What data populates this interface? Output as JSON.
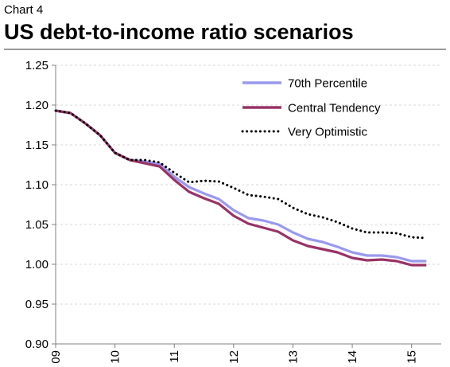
{
  "header": {
    "label": "Chart 4",
    "title": "US debt-to-income ratio scenarios"
  },
  "colors": {
    "series_70th": "#9999ee",
    "series_central": "#993366",
    "series_optimistic": "#000000",
    "gridline": "#d9d9d9",
    "axis": "#808080"
  },
  "chart_data": {
    "type": "line",
    "title": "US debt-to-income ratio scenarios",
    "xlabel": "",
    "ylabel": "",
    "ylim": [
      0.9,
      1.25
    ],
    "xlim": [
      2009,
      2015.5
    ],
    "yticks": [
      0.9,
      0.95,
      1.0,
      1.05,
      1.1,
      1.15,
      1.2,
      1.25
    ],
    "ytick_labels": [
      "0.90",
      "0.95",
      "1.00",
      "1.05",
      "1.10",
      "1.15",
      "1.20",
      "1.25"
    ],
    "xticks": [
      2009,
      2010,
      2011,
      2012,
      2013,
      2014,
      2015
    ],
    "xtick_labels": [
      "09",
      "10",
      "11",
      "12",
      "13",
      "14",
      "15"
    ],
    "grid": true,
    "legend_position": "top-right",
    "series": [
      {
        "name": "70th Percentile",
        "style": "solid",
        "color": "#9999ee",
        "x": [
          2009.0,
          2009.25,
          2009.5,
          2009.75,
          2010.0,
          2010.25,
          2010.5,
          2010.75,
          2011.0,
          2011.25,
          2011.5,
          2011.75,
          2012.0,
          2012.25,
          2012.5,
          2012.75,
          2013.0,
          2013.25,
          2013.5,
          2013.75,
          2014.0,
          2014.25,
          2014.5,
          2014.75,
          2015.0,
          2015.25
        ],
        "values": [
          1.193,
          1.19,
          1.177,
          1.162,
          1.14,
          1.131,
          1.129,
          1.126,
          1.11,
          1.097,
          1.089,
          1.082,
          1.068,
          1.058,
          1.055,
          1.05,
          1.04,
          1.032,
          1.028,
          1.022,
          1.015,
          1.011,
          1.011,
          1.009,
          1.004,
          1.004
        ]
      },
      {
        "name": "Central Tendency",
        "style": "solid",
        "color": "#993366",
        "x": [
          2009.0,
          2009.25,
          2009.5,
          2009.75,
          2010.0,
          2010.25,
          2010.5,
          2010.75,
          2011.0,
          2011.25,
          2011.5,
          2011.75,
          2012.0,
          2012.25,
          2012.5,
          2012.75,
          2013.0,
          2013.25,
          2013.5,
          2013.75,
          2014.0,
          2014.25,
          2014.5,
          2014.75,
          2015.0,
          2015.25
        ],
        "values": [
          1.193,
          1.19,
          1.177,
          1.162,
          1.14,
          1.131,
          1.127,
          1.123,
          1.106,
          1.091,
          1.083,
          1.076,
          1.061,
          1.051,
          1.046,
          1.041,
          1.03,
          1.023,
          1.019,
          1.015,
          1.008,
          1.005,
          1.006,
          1.004,
          0.999,
          0.999
        ]
      },
      {
        "name": "Very Optimistic",
        "style": "dotted",
        "color": "#000000",
        "x": [
          2009.0,
          2009.25,
          2009.5,
          2009.75,
          2010.0,
          2010.25,
          2010.5,
          2010.75,
          2011.0,
          2011.25,
          2011.5,
          2011.75,
          2012.0,
          2012.25,
          2012.5,
          2012.75,
          2013.0,
          2013.25,
          2013.5,
          2013.75,
          2014.0,
          2014.25,
          2014.5,
          2014.75,
          2015.0,
          2015.25
        ],
        "values": [
          1.193,
          1.19,
          1.177,
          1.162,
          1.14,
          1.131,
          1.131,
          1.128,
          1.115,
          1.103,
          1.105,
          1.104,
          1.096,
          1.087,
          1.085,
          1.082,
          1.071,
          1.063,
          1.059,
          1.053,
          1.045,
          1.04,
          1.04,
          1.039,
          1.034,
          1.033
        ]
      }
    ]
  }
}
